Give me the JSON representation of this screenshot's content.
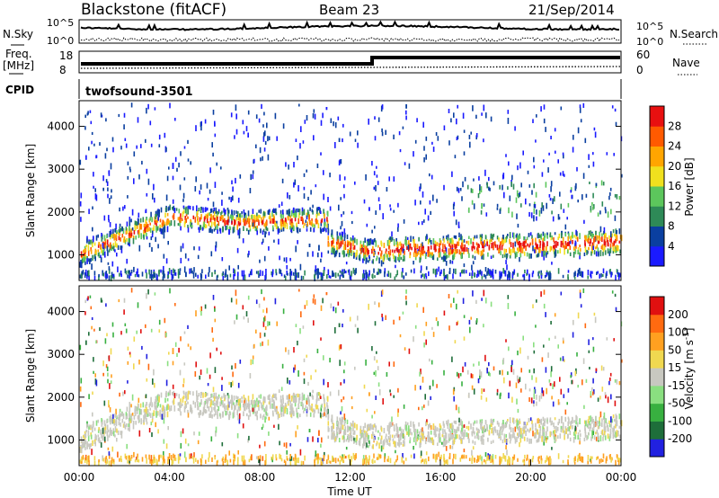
{
  "header": {
    "station": "Blackstone (fitACF)",
    "beam": "Beam 23",
    "date": "21/Sep/2014"
  },
  "noise_panel": {
    "left_label": "N.Sky",
    "right_label": "N.Search",
    "tick_top": "10^5",
    "tick_bottom": "10^0"
  },
  "freq_panel": {
    "left_label_1": "Freq.",
    "left_label_2": "[MHz]",
    "right_label": "Nave",
    "left_ticks": [
      "18",
      "8"
    ],
    "right_ticks": [
      "60",
      "0"
    ]
  },
  "cpid_panel": {
    "label": "CPID",
    "program": "twofsound",
    "cpid": "-3501"
  },
  "colors": {
    "power_scale": [
      "#1a1aff",
      "#0a3fa0",
      "#2e8a57",
      "#5cc65c",
      "#f0e01e",
      "#ffa500",
      "#ff5a00",
      "#e81010"
    ],
    "velocity_scale": [
      "#2121e0",
      "#1e6e3a",
      "#38b040",
      "#8adf80",
      "#c8c8c0",
      "#f0d850",
      "#ffa020",
      "#ff6a10",
      "#e01010"
    ]
  },
  "chart_data": [
    {
      "type": "heatmap",
      "name": "power_panel",
      "ylabel": "Slant Range [km]",
      "xlabel": "",
      "y_ticks": [
        1000,
        2000,
        3000,
        4000
      ],
      "ylim": [
        400,
        4600
      ],
      "xlim": [
        0,
        24
      ],
      "colorbar": {
        "label": "Power [dB]",
        "ticks": [
          4,
          8,
          12,
          16,
          20,
          24,
          28
        ]
      }
    },
    {
      "type": "heatmap",
      "name": "velocity_panel",
      "ylabel": "Slant Range [km]",
      "xlabel": "Time UT",
      "x_ticks": [
        "00:00",
        "04:00",
        "08:00",
        "12:00",
        "16:00",
        "20:00",
        "00:00"
      ],
      "y_ticks": [
        1000,
        2000,
        3000,
        4000
      ],
      "ylim": [
        400,
        4600
      ],
      "xlim": [
        0,
        24
      ],
      "colorbar": {
        "label": "Velocity [m s-1]",
        "ticks": [
          200,
          100,
          50,
          15,
          -15,
          -50,
          -100,
          -200
        ]
      }
    }
  ]
}
